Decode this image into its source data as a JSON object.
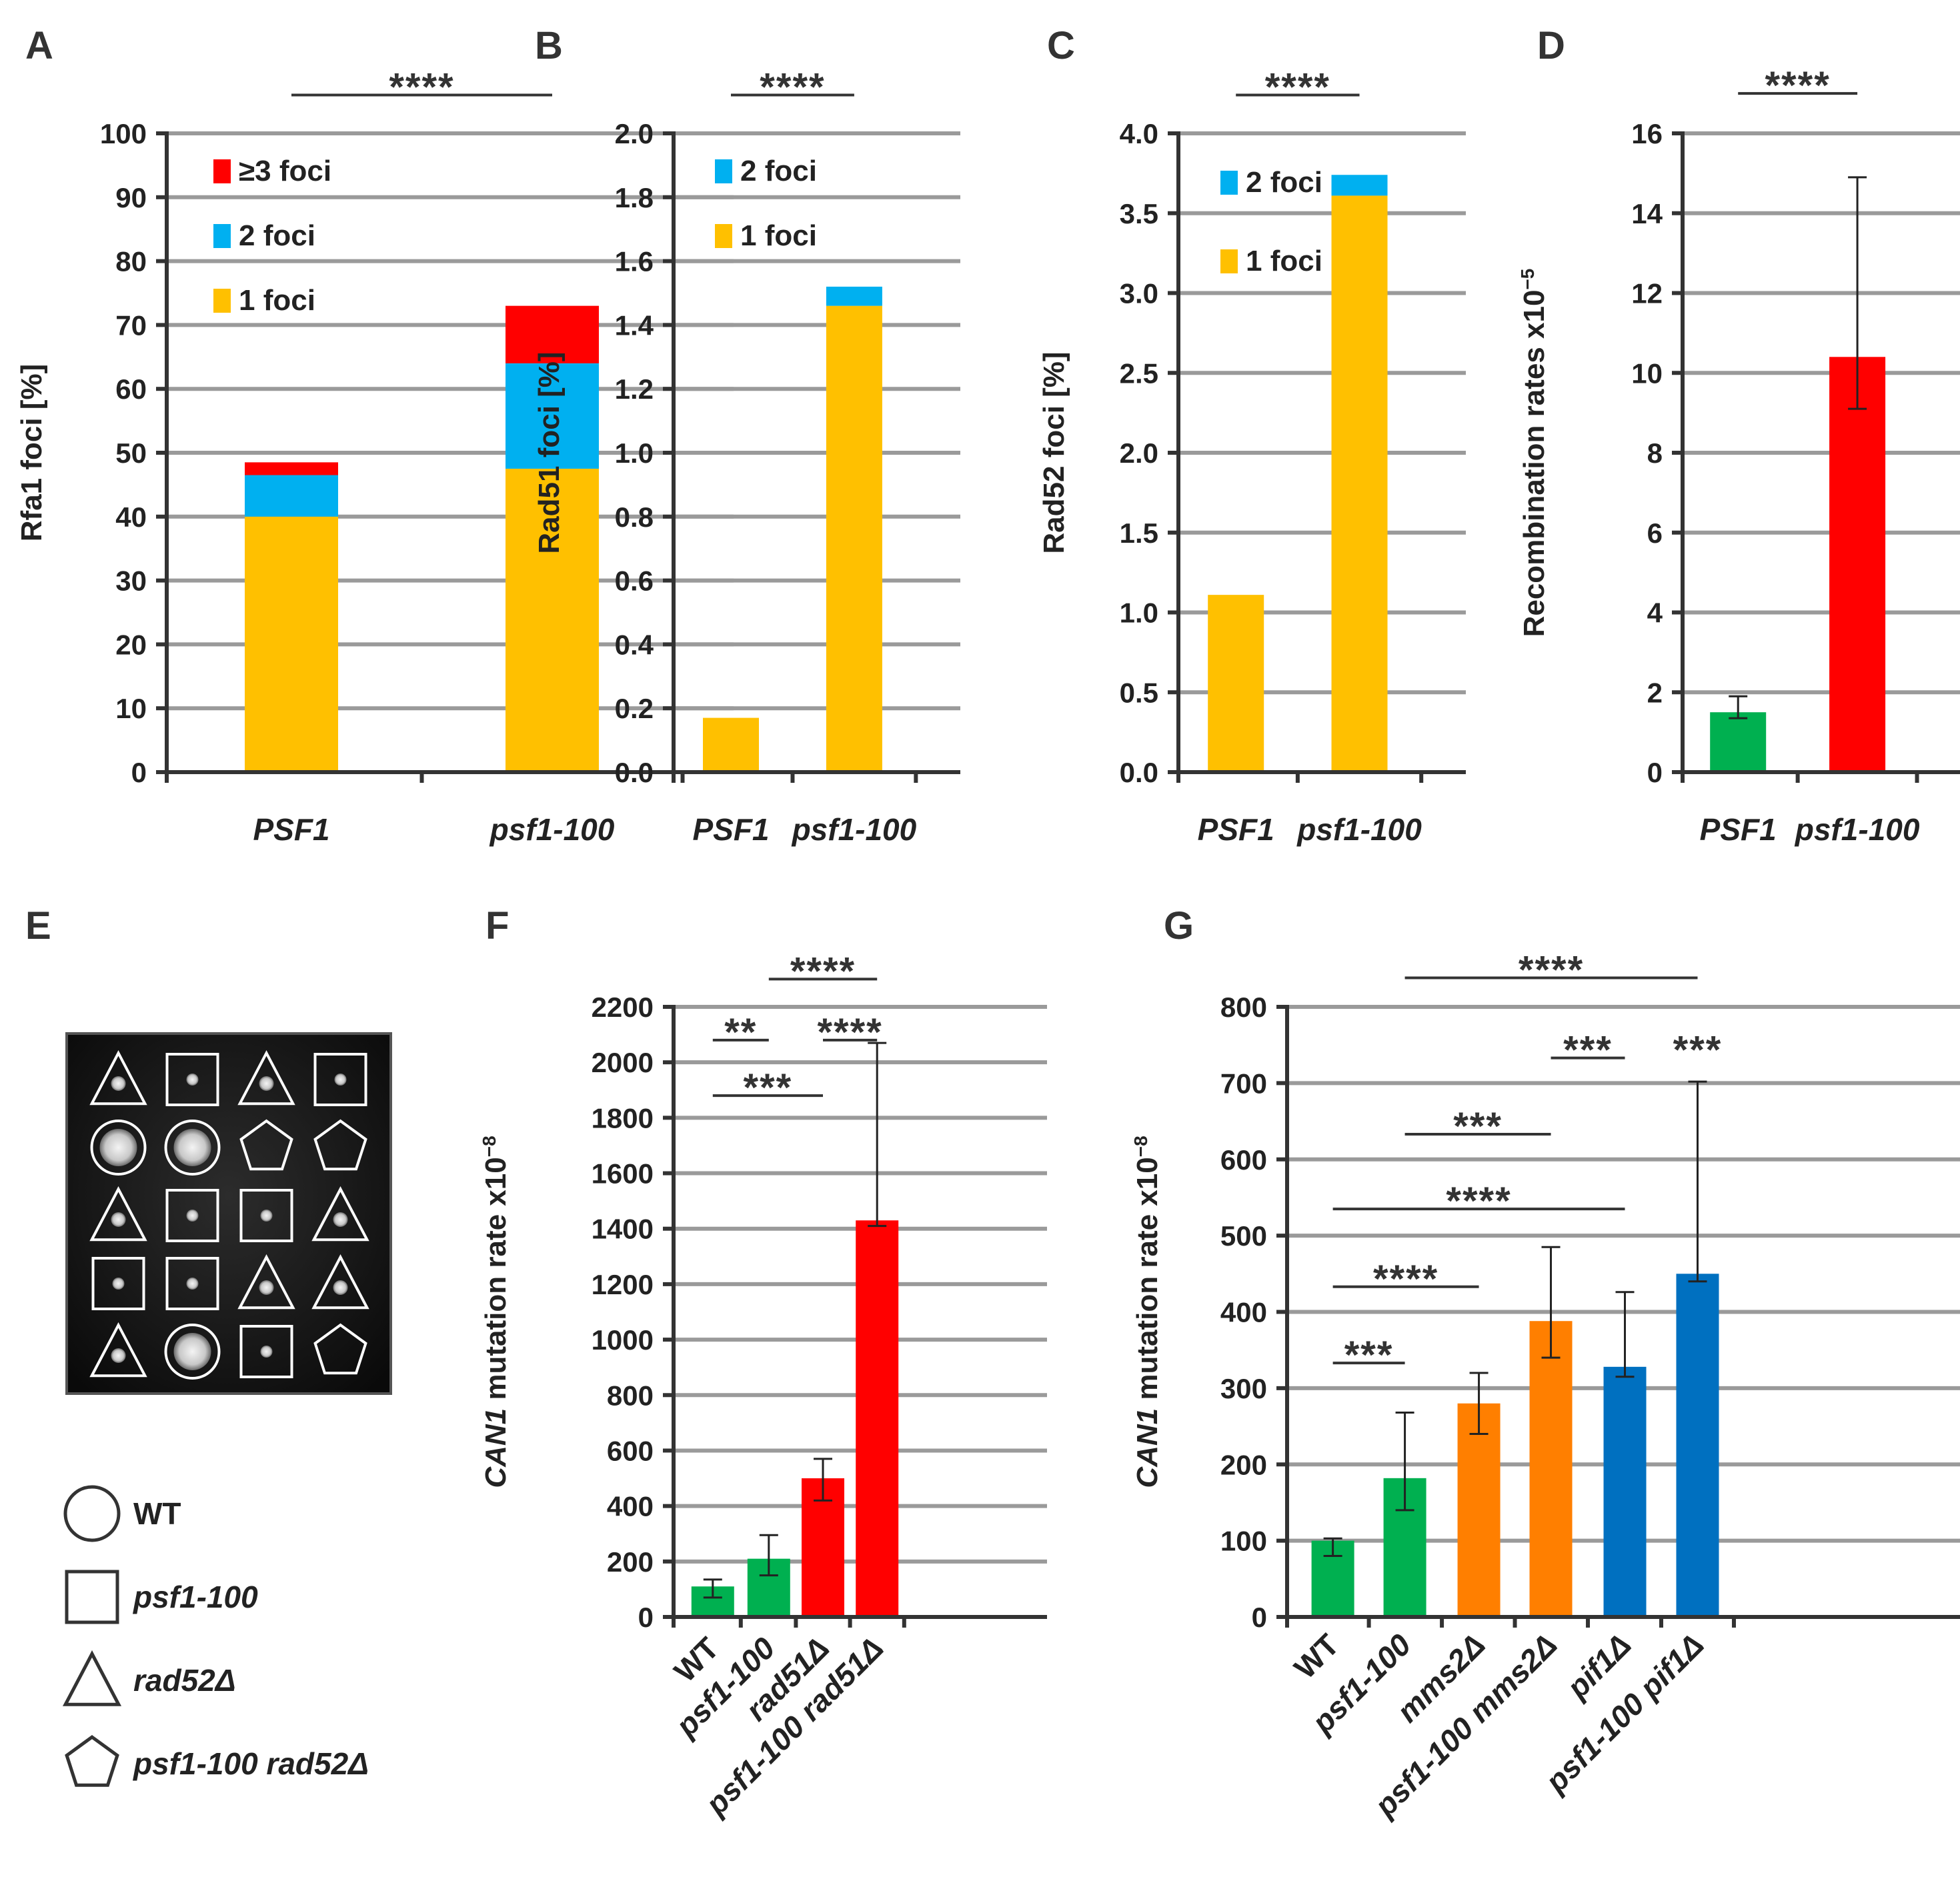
{
  "chart_data": [
    {
      "id": "A",
      "type": "bar",
      "stacked": true,
      "panel_label": "A",
      "ylabel": "Rfa1 foci [%]",
      "ylim": [
        0,
        100
      ],
      "ytick_step": 10,
      "ytick_decimals": 0,
      "categories": [
        "PSF1",
        "psf1-100"
      ],
      "series": [
        {
          "name": "1 foci",
          "color": "#FFC000",
          "values": [
            40,
            47.5
          ]
        },
        {
          "name": "2 foci",
          "color": "#00B0F0",
          "values": [
            6.5,
            16.5
          ]
        },
        {
          "name": "≥3 foci",
          "color": "#FF0000",
          "values": [
            2,
            9
          ]
        }
      ],
      "significance": [
        {
          "label": "****",
          "from": 0,
          "to": 1,
          "y": 106
        }
      ]
    },
    {
      "id": "B",
      "type": "bar",
      "stacked": true,
      "panel_label": "B",
      "ylabel": "Rad51 foci [%]",
      "ylim": [
        0,
        2.0
      ],
      "ytick_step": 0.2,
      "ytick_decimals": 1,
      "categories": [
        "PSF1",
        "psf1-100"
      ],
      "series": [
        {
          "name": "1 foci",
          "color": "#FFC000",
          "values": [
            0.17,
            1.46
          ]
        },
        {
          "name": "2 foci",
          "color": "#00B0F0",
          "values": [
            0,
            0.06
          ]
        }
      ],
      "significance": [
        {
          "label": "****",
          "from": 0,
          "to": 1,
          "y": 2.12
        }
      ]
    },
    {
      "id": "C",
      "type": "bar",
      "stacked": true,
      "panel_label": "C",
      "ylabel": "Rad52 foci [%]",
      "ylim": [
        0,
        4.0
      ],
      "ytick_step": 0.5,
      "ytick_decimals": 1,
      "categories": [
        "PSF1",
        "psf1-100"
      ],
      "series": [
        {
          "name": "1 foci",
          "color": "#FFC000",
          "values": [
            1.11,
            3.61
          ]
        },
        {
          "name": "2 foci",
          "color": "#00B0F0",
          "values": [
            0,
            0.13
          ]
        }
      ],
      "significance": [
        {
          "label": "****",
          "from": 0,
          "to": 1,
          "y": 4.24
        }
      ]
    },
    {
      "id": "D",
      "type": "bar",
      "panel_label": "D",
      "ylabel": "Recombination rates x10",
      "ylabel_sup": "−5",
      "ylim": [
        0,
        16
      ],
      "ytick_step": 2,
      "ytick_decimals": 0,
      "categories": [
        "PSF1",
        "psf1-100"
      ],
      "values": [
        1.5,
        10.4
      ],
      "colors": [
        "#00B050",
        "#FF0000"
      ],
      "error_low": [
        1.35,
        9.1
      ],
      "error_high": [
        1.9,
        14.9
      ],
      "significance": [
        {
          "label": "****",
          "from": 0,
          "to": 1,
          "y": 17
        }
      ]
    },
    {
      "id": "F",
      "type": "bar",
      "panel_label": "F",
      "ylabel": "mutation rate x10",
      "ylabel_italic": "CAN1",
      "ylabel_sup": "−8",
      "ylim": [
        0,
        2200
      ],
      "ytick_step": 200,
      "ytick_decimals": 0,
      "categories": [
        "WT",
        "psf1-100",
        "rad51Δ",
        "psf1-100 rad51Δ"
      ],
      "values": [
        110,
        210,
        500,
        1430
      ],
      "colors": [
        "#00B050",
        "#00B050",
        "#FF0000",
        "#FF0000"
      ],
      "error_low": [
        70,
        150,
        420,
        1410
      ],
      "error_high": [
        135,
        295,
        570,
        2070
      ],
      "significance": [
        {
          "label": "****",
          "from": 1.0,
          "to": 3.0,
          "y": 2300
        },
        {
          "label": "**",
          "from": 0.0,
          "to": 1.0,
          "y": 2080
        },
        {
          "label": "****",
          "from": 2.0,
          "to": 3.0,
          "y": 2080
        },
        {
          "label": "***",
          "from": 0.0,
          "to": 2.0,
          "y": 1880
        }
      ]
    },
    {
      "id": "G",
      "type": "bar",
      "panel_label": "G",
      "ylabel": "mutation rate x10",
      "ylabel_italic": "CAN1",
      "ylabel_sup": "−8",
      "ylim": [
        0,
        800
      ],
      "ytick_step": 100,
      "ytick_decimals": 0,
      "categories": [
        "WT",
        "psf1-100",
        "mms2Δ",
        "psf1-100 mms2Δ",
        "pif1Δ",
        "psf1-100 pif1Δ"
      ],
      "values": [
        100,
        182,
        280,
        388,
        328,
        450
      ],
      "colors": [
        "#00B050",
        "#00B050",
        "#FF7F00",
        "#FF7F00",
        "#0070C0",
        "#0070C0"
      ],
      "error_low": [
        80,
        140,
        240,
        340,
        315,
        440
      ],
      "error_high": [
        103,
        268,
        320,
        485,
        426,
        702
      ],
      "significance": [
        {
          "label": "****",
          "from": 1.0,
          "to": 5.0,
          "y": 838
        },
        {
          "label": "***",
          "from": 3.0,
          "to": 4.0,
          "y": 733
        },
        {
          "label": "***",
          "from": 5.0,
          "to": 6.0,
          "y": 733
        },
        {
          "label": "***",
          "from": 1.0,
          "to": 3.0,
          "y": 633
        },
        {
          "label": "****",
          "from": 0.0,
          "to": 4.0,
          "y": 535
        },
        {
          "label": "****",
          "from": 0.0,
          "to": 2.0,
          "y": 433
        },
        {
          "label": "***",
          "from": 0.0,
          "to": 1.0,
          "y": 333
        }
      ]
    }
  ],
  "panel_e": {
    "panel_label": "E",
    "grid_rows": [
      [
        "triangle",
        "square",
        "triangle",
        "square"
      ],
      [
        "circle",
        "circle",
        "pentagon",
        "pentagon"
      ],
      [
        "triangle",
        "square",
        "square",
        "triangle"
      ],
      [
        "square",
        "square",
        "triangle",
        "triangle"
      ],
      [
        "triangle",
        "circle",
        "square",
        "pentagon"
      ]
    ],
    "legend": [
      {
        "shape": "circle",
        "label": "WT"
      },
      {
        "shape": "square",
        "label": "psf1-100"
      },
      {
        "shape": "triangle",
        "label": "rad52Δ"
      },
      {
        "shape": "pentagon",
        "label": "psf1-100 rad52Δ"
      }
    ]
  }
}
